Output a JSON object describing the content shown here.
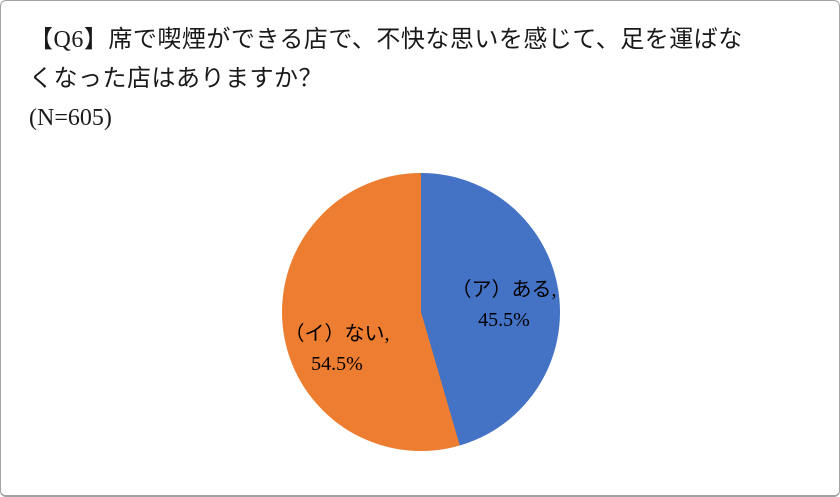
{
  "panel": {
    "title_line1": "【Q6】席で喫煙ができる店で、不快な思いを感じて、足を運ばな",
    "title_line2": "くなった店はありますか？",
    "sample_size": "(N=605)"
  },
  "chart_data": {
    "type": "pie",
    "title": "【Q6】席で喫煙ができる店で、不快な思いを感じて、足を運ばなくなった店はありますか？",
    "sample_size": "(N=605)",
    "categories": [
      "（ア）ある",
      "（イ）ない"
    ],
    "values": [
      45.5,
      54.5
    ],
    "unit": "%",
    "colors": [
      "#4472C4",
      "#ED7D31"
    ],
    "start_angle_deg": 0,
    "direction": "clockwise",
    "legend_position": "none",
    "label_text_color": "#000000",
    "labels": [
      {
        "name": "（ア）ある,",
        "value": "45.5%"
      },
      {
        "name": "（イ）ない,",
        "value": "54.5%"
      }
    ]
  }
}
